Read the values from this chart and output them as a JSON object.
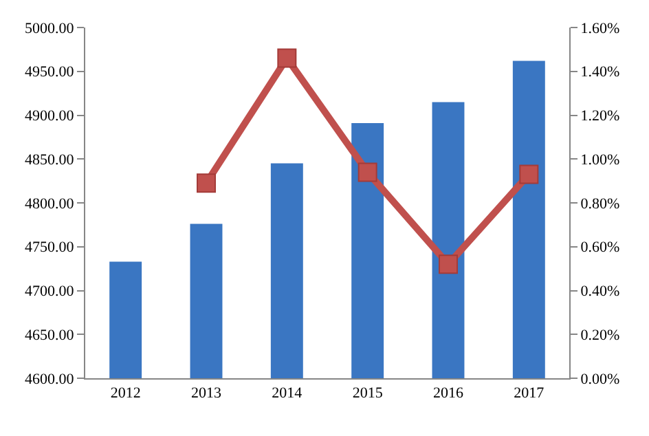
{
  "chart_data": {
    "type": "bar",
    "categories": [
      "2012",
      "2013",
      "2014",
      "2015",
      "2016",
      "2017"
    ],
    "series": [
      {
        "color": "#3a76c2",
        "values": [
          4733,
          4776,
          4845,
          4891,
          4915,
          4962
        ]
      },
      {
        "type": "line",
        "axis": "y2",
        "color": "#c0504d",
        "marker": "square",
        "line_style": "solid",
        "values": [
          null,
          0.89,
          1.46,
          0.94,
          0.52,
          0.93
        ]
      }
    ],
    "ylim": [
      4600,
      5000
    ],
    "yticks": [
      {
        "value": 4600,
        "label": "4600.00"
      },
      {
        "value": 4650,
        "label": "4650.00"
      },
      {
        "value": 4700,
        "label": "4700.00"
      },
      {
        "value": 4750,
        "label": "4750.00"
      },
      {
        "value": 4800,
        "label": "4800.00"
      },
      {
        "value": 4850,
        "label": "4850.00"
      },
      {
        "value": 4900,
        "label": "4900.00"
      },
      {
        "value": 4950,
        "label": "4950.00"
      },
      {
        "value": 5000,
        "label": "5000.00"
      }
    ],
    "y2lim": [
      0,
      1.6
    ],
    "y2ticks": [
      {
        "value": 0,
        "label": "0.00%"
      },
      {
        "value": 0.2,
        "label": "0.20%"
      },
      {
        "value": 0.4,
        "label": "0.40%"
      },
      {
        "value": 0.6,
        "label": "0.60%"
      },
      {
        "value": 0.8,
        "label": "0.80%"
      },
      {
        "value": 1.0,
        "label": "1.00%"
      },
      {
        "value": 1.2,
        "label": "1.20%"
      },
      {
        "value": 1.4,
        "label": "1.40%"
      },
      {
        "value": 1.6,
        "label": "1.60%"
      }
    ]
  }
}
